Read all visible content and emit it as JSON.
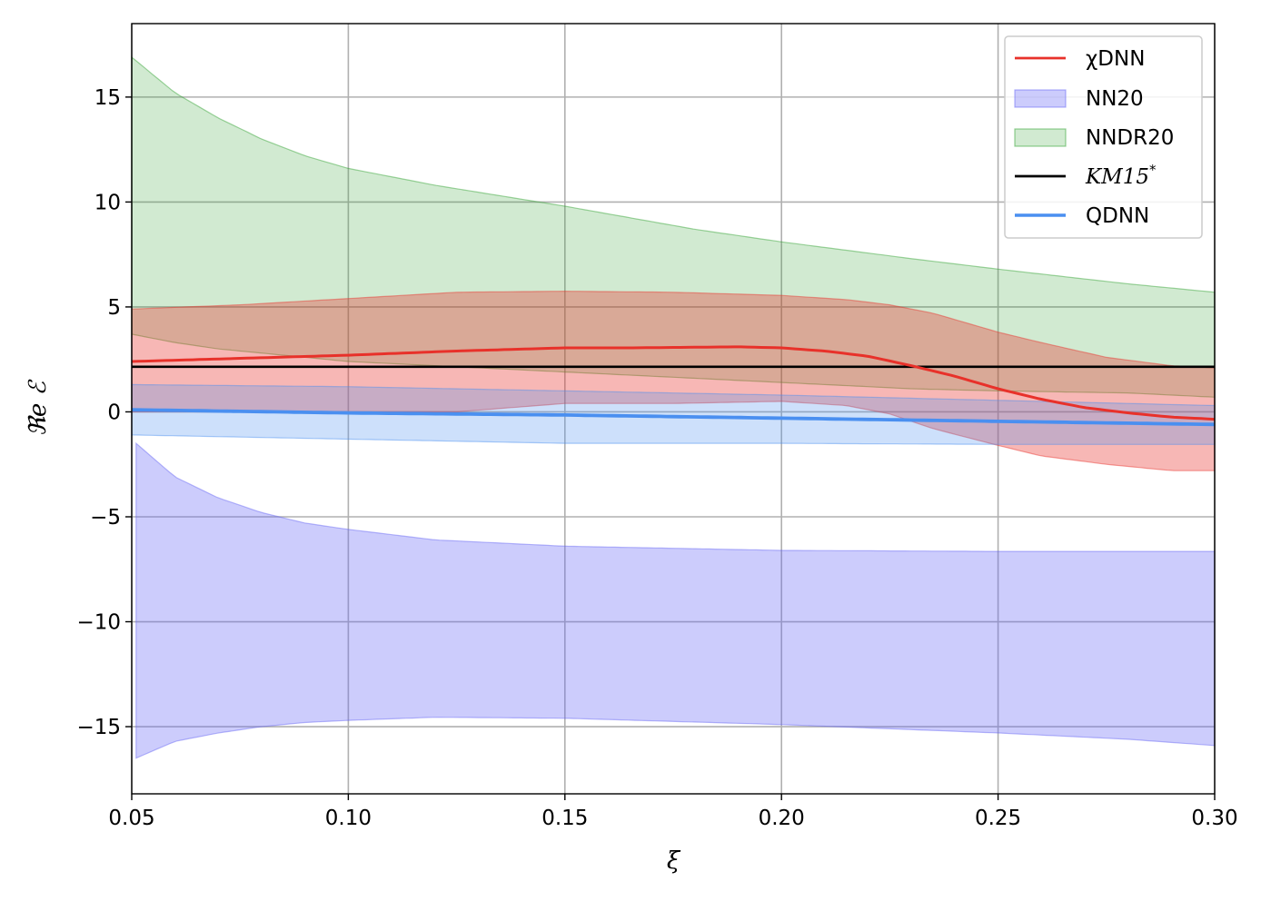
{
  "chart_data": {
    "type": "line",
    "xlabel": "ξ",
    "ylabel": "ℜe ℰ",
    "xlim": [
      0.05,
      0.3
    ],
    "ylim": [
      -18.2,
      18.5
    ],
    "xticks": [
      0.05,
      0.1,
      0.15,
      0.2,
      0.25,
      0.3
    ],
    "xtick_labels": [
      "0.05",
      "0.10",
      "0.15",
      "0.20",
      "0.25",
      "0.30"
    ],
    "yticks": [
      -15,
      -10,
      -5,
      0,
      5,
      10,
      15
    ],
    "ytick_labels": [
      "−15",
      "−10",
      "−5",
      "0",
      "5",
      "10",
      "15"
    ],
    "grid": true,
    "legend_position": "top-right",
    "bands": [
      {
        "name": "NNDR20",
        "color": "#2ca02c",
        "opacity": 0.22,
        "x": [
          0.05,
          0.06,
          0.07,
          0.08,
          0.09,
          0.1,
          0.12,
          0.15,
          0.18,
          0.2,
          0.23,
          0.25,
          0.28,
          0.3
        ],
        "lower": [
          3.7,
          3.3,
          3.0,
          2.8,
          2.6,
          2.4,
          2.2,
          1.9,
          1.6,
          1.4,
          1.1,
          1.0,
          0.9,
          0.7
        ],
        "upper": [
          16.9,
          15.2,
          14.0,
          13.0,
          12.2,
          11.6,
          10.8,
          9.8,
          8.7,
          8.1,
          7.3,
          6.8,
          6.1,
          5.7
        ]
      },
      {
        "name": "χDNN band",
        "color": "#e8312a",
        "opacity": 0.35,
        "x": [
          0.05,
          0.075,
          0.1,
          0.125,
          0.15,
          0.175,
          0.2,
          0.215,
          0.225,
          0.235,
          0.25,
          0.26,
          0.275,
          0.29,
          0.3
        ],
        "lower": [
          0.0,
          0.0,
          0.0,
          0.0,
          0.4,
          0.4,
          0.5,
          0.3,
          -0.1,
          -0.8,
          -1.6,
          -2.1,
          -2.5,
          -2.8,
          -2.8
        ],
        "upper": [
          4.9,
          5.1,
          5.4,
          5.7,
          5.75,
          5.7,
          5.55,
          5.35,
          5.1,
          4.7,
          3.8,
          3.3,
          2.6,
          2.2,
          2.1
        ]
      },
      {
        "name": "QDNN band",
        "color": "#4a8ff0",
        "opacity": 0.28,
        "x": [
          0.05,
          0.1,
          0.15,
          0.2,
          0.25,
          0.3
        ],
        "lower": [
          -1.1,
          -1.3,
          -1.5,
          -1.5,
          -1.55,
          -1.55
        ],
        "upper": [
          1.3,
          1.2,
          1.0,
          0.8,
          0.55,
          0.3
        ]
      },
      {
        "name": "NN20",
        "color": "#6464f5",
        "opacity": 0.33,
        "x": [
          0.051,
          0.06,
          0.07,
          0.08,
          0.09,
          0.1,
          0.12,
          0.15,
          0.2,
          0.25,
          0.28,
          0.3
        ],
        "lower": [
          -16.5,
          -15.7,
          -15.3,
          -15.0,
          -14.8,
          -14.7,
          -14.55,
          -14.6,
          -14.9,
          -15.3,
          -15.6,
          -15.9
        ],
        "upper": [
          -1.5,
          -3.1,
          -4.1,
          -4.8,
          -5.3,
          -5.6,
          -6.1,
          -6.4,
          -6.6,
          -6.65,
          -6.65,
          -6.65
        ]
      }
    ],
    "series": [
      {
        "name": "KM15*",
        "color": "#000000",
        "width": 2.6,
        "x": [
          0.05,
          0.3
        ],
        "y": [
          2.15,
          2.15
        ]
      },
      {
        "name": "χDNN",
        "color": "#e8312a",
        "width": 3,
        "x": [
          0.05,
          0.075,
          0.1,
          0.125,
          0.15,
          0.165,
          0.175,
          0.19,
          0.2,
          0.21,
          0.22,
          0.23,
          0.24,
          0.25,
          0.26,
          0.27,
          0.28,
          0.29,
          0.3
        ],
        "y": [
          2.4,
          2.55,
          2.7,
          2.9,
          3.05,
          3.05,
          3.07,
          3.1,
          3.05,
          2.9,
          2.65,
          2.2,
          1.7,
          1.1,
          0.6,
          0.2,
          -0.05,
          -0.25,
          -0.35
        ]
      },
      {
        "name": "QDNN",
        "color": "#4a8ff0",
        "width": 3.8,
        "x": [
          0.05,
          0.1,
          0.15,
          0.2,
          0.25,
          0.3
        ],
        "y": [
          0.1,
          -0.05,
          -0.15,
          -0.3,
          -0.45,
          -0.6
        ]
      }
    ],
    "legend": [
      {
        "kind": "line",
        "label_base": "χDNN",
        "label_sup": "",
        "italic": false,
        "color": "#e8312a"
      },
      {
        "kind": "patch",
        "label_base": "NN20",
        "label_sup": "",
        "italic": false,
        "color": "#6464f5"
      },
      {
        "kind": "patch",
        "label_base": "NNDR20",
        "label_sup": "",
        "italic": false,
        "color": "#2ca02c"
      },
      {
        "kind": "line",
        "label_base": "KM15",
        "label_sup": "*",
        "italic": true,
        "color": "#000000"
      },
      {
        "kind": "line",
        "label_base": "QDNN",
        "label_sup": "",
        "italic": false,
        "color": "#4a8ff0"
      }
    ]
  }
}
